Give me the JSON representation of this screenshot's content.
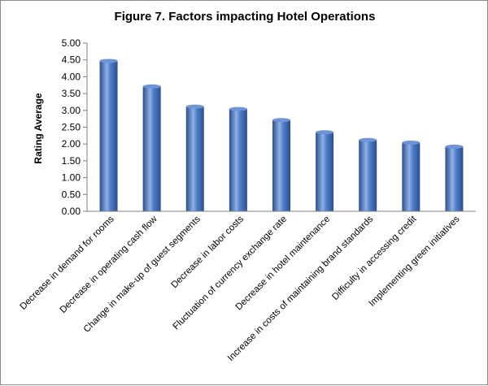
{
  "chart_data": {
    "type": "bar",
    "title": "Figure 7. Factors impacting Hotel Operations",
    "xlabel": "",
    "ylabel": "Rating Average",
    "ylim": [
      0,
      5
    ],
    "ytick_step": 0.5,
    "ytick_labels": [
      "0.00",
      "0.50",
      "1.00",
      "1.50",
      "2.00",
      "2.50",
      "3.00",
      "3.50",
      "4.00",
      "4.50",
      "5.00"
    ],
    "grid": false,
    "legend": "none",
    "categories": [
      "Decrease in demand for rooms",
      "Decrease in operating cash flow",
      "Change in make-up of guest segments",
      "Decrease in labor costs",
      "Fluctuation of currency exchange rate",
      "Decrease in hotel maintenance",
      "Increase in costs of maintaining brand standards",
      "Difficulty in accessing credit",
      "Implementing green initiatives"
    ],
    "values": [
      4.47,
      3.71,
      3.11,
      3.04,
      2.71,
      2.35,
      2.12,
      2.04,
      1.92
    ],
    "colors": {
      "bar_dark": "#2a4f8f",
      "bar_mid": "#4f7fca",
      "bar_light": "#8fb1e6",
      "bar_top": "#6d94d6",
      "axis": "#808080"
    }
  }
}
